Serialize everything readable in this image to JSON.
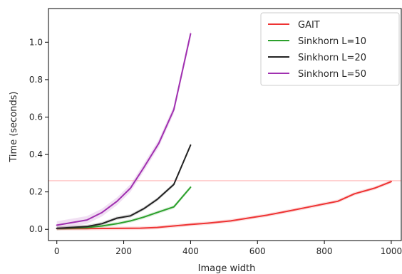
{
  "chart_data": {
    "type": "line",
    "title": "",
    "xlabel": "Image width",
    "ylabel": "Time (seconds)",
    "xlim": [
      -25,
      1030
    ],
    "ylim": [
      -0.06,
      1.18
    ],
    "xticks": [
      0,
      200,
      400,
      600,
      800,
      1000
    ],
    "yticks": [
      0.0,
      0.2,
      0.4,
      0.6,
      0.8,
      1.0
    ],
    "xtick_labels": [
      "0",
      "200",
      "400",
      "600",
      "800",
      "1000"
    ],
    "ytick_labels": [
      "0.0",
      "0.2",
      "0.4",
      "0.6",
      "0.8",
      "1.0"
    ],
    "grid": false,
    "legend_position": "top-right",
    "hline": {
      "y": 0.26,
      "color": "#ffc8c8"
    },
    "series": [
      {
        "name": "GAIT",
        "color": "#ee3333",
        "x": [
          0,
          90,
          180,
          250,
          300,
          350,
          400,
          450,
          520,
          580,
          630,
          700,
          750,
          800,
          840,
          890,
          950,
          1000
        ],
        "y": [
          0.004,
          0.004,
          0.005,
          0.006,
          0.01,
          0.018,
          0.026,
          0.033,
          0.045,
          0.062,
          0.076,
          0.1,
          0.118,
          0.136,
          0.15,
          0.19,
          0.22,
          0.255
        ]
      },
      {
        "name": "Sinkhorn L=10",
        "color": "#2ca02c",
        "x": [
          0,
          90,
          135,
          180,
          220,
          260,
          300,
          350,
          400
        ],
        "y": [
          0.005,
          0.01,
          0.018,
          0.03,
          0.045,
          0.065,
          0.09,
          0.12,
          0.225
        ]
      },
      {
        "name": "Sinkhorn L=20",
        "color": "#222222",
        "x": [
          0,
          90,
          135,
          180,
          220,
          260,
          300,
          350,
          400
        ],
        "y": [
          0.005,
          0.015,
          0.03,
          0.06,
          0.072,
          0.11,
          0.16,
          0.24,
          0.45
        ]
      },
      {
        "name": "Sinkhorn L=50",
        "color": "#a030b0",
        "x": [
          0,
          90,
          135,
          180,
          220,
          260,
          305,
          350,
          400
        ],
        "y": [
          0.022,
          0.05,
          0.09,
          0.15,
          0.22,
          0.33,
          0.46,
          0.64,
          1.045
        ]
      }
    ]
  }
}
